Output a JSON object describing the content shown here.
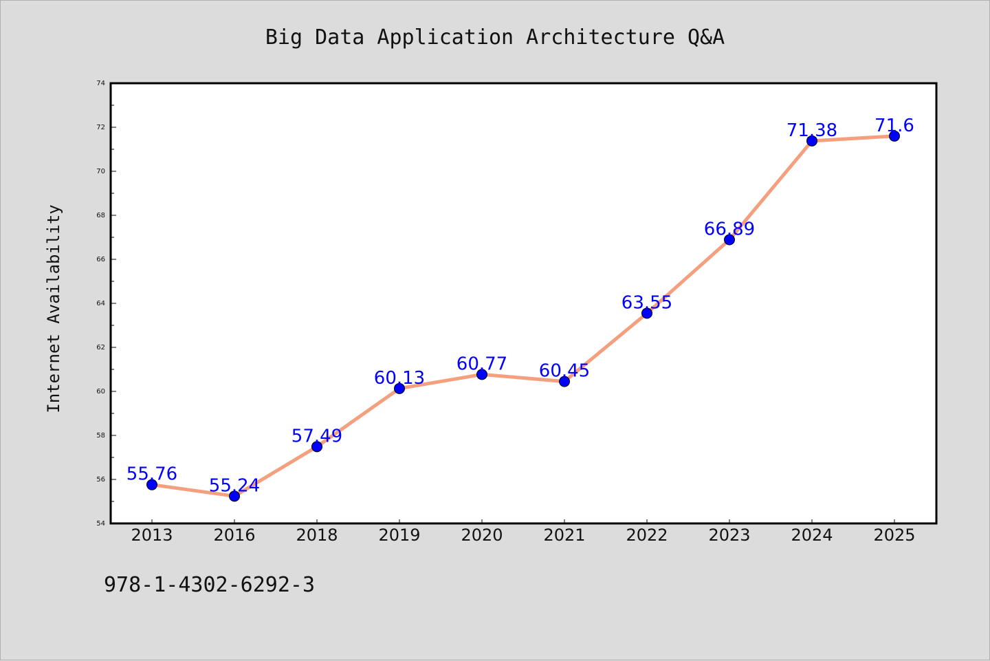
{
  "figure": {
    "isbn": "978-1-4302-6292-3"
  },
  "colors": {
    "background": "#dcdcdc",
    "plot_background": "#ffffff",
    "line": "#f4a07e",
    "marker": "#0000ff",
    "data_label": "#0000ff"
  },
  "chart_data": {
    "type": "line",
    "title": "Big Data Application Architecture Q&A",
    "xlabel": "",
    "ylabel": "Internet Availability",
    "categories": [
      "2013",
      "2016",
      "2018",
      "2019",
      "2020",
      "2021",
      "2022",
      "2023",
      "2024",
      "2025"
    ],
    "values": [
      55.76,
      55.24,
      57.49,
      60.13,
      60.77,
      60.45,
      63.55,
      66.89,
      71.38,
      71.6
    ],
    "data_labels": [
      "55.76",
      "55.24",
      "57.49",
      "60.13",
      "60.77",
      "60.45",
      "63.55",
      "66.89",
      "71.38",
      "71.6"
    ],
    "ylim": [
      54,
      74
    ],
    "yticks": [
      "54",
      "56",
      "58",
      "60",
      "62",
      "64",
      "66",
      "68",
      "70",
      "72",
      "74"
    ],
    "grid": false,
    "legend": "none",
    "marker": "circle"
  }
}
